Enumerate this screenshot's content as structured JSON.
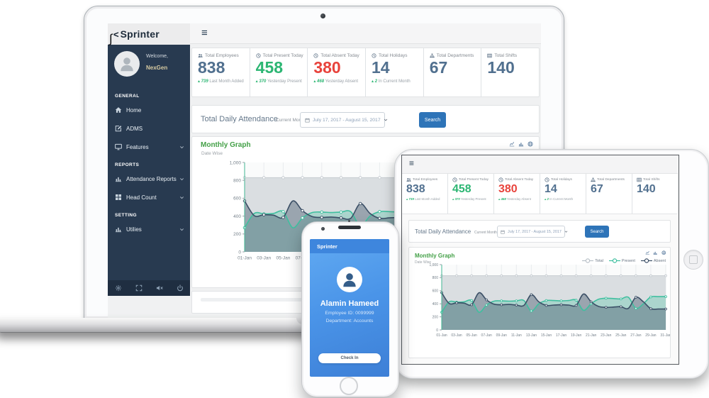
{
  "brand": {
    "name": "Sprinter",
    "logo_glyph": "<",
    "swoosh_glyph": "∫"
  },
  "sidebar": {
    "welcome": "Welcome,",
    "username": "NexGen",
    "sections": [
      {
        "label": "GENERAL",
        "items": [
          {
            "icon": "home",
            "label": "Home",
            "expandable": false
          },
          {
            "icon": "edit",
            "label": "ADMS",
            "expandable": false
          },
          {
            "icon": "desktop",
            "label": "Features",
            "expandable": true
          }
        ]
      },
      {
        "label": "REPORTS",
        "items": [
          {
            "icon": "chart-bar",
            "label": "Attendance Reports",
            "expandable": true
          },
          {
            "icon": "grid",
            "label": "Head Count",
            "expandable": true
          }
        ]
      },
      {
        "label": "SETTING",
        "items": [
          {
            "icon": "chart-bar",
            "label": "Utilies",
            "expandable": true
          }
        ]
      }
    ],
    "footer_icons": [
      "gear",
      "expand",
      "mute",
      "power"
    ]
  },
  "stats": [
    {
      "icon": "users",
      "label": "Total Employees",
      "value": "838",
      "value_color": "#51708f",
      "delta": "739",
      "delta_text": "Last Month Added"
    },
    {
      "icon": "clock",
      "label": "Total Present Today",
      "value": "458",
      "value_color": "#2cb673",
      "delta": "370",
      "delta_text": "Yesterday Present"
    },
    {
      "icon": "clock",
      "label": "Total Absent Today",
      "value": "380",
      "value_color": "#e8433c",
      "delta": "468",
      "delta_text": "Yesterday Absent"
    },
    {
      "icon": "clock",
      "label": "Total Holidays",
      "value": "14",
      "value_color": "#51708f",
      "delta": "2",
      "delta_text": "In Current Month"
    },
    {
      "icon": "sitemap",
      "label": "Total Departments",
      "value": "67",
      "value_color": "#51708f",
      "delta": "",
      "delta_text": ""
    },
    {
      "icon": "table",
      "label": "Total Shifts",
      "value": "140",
      "value_color": "#51708f",
      "delta": "",
      "delta_text": ""
    }
  ],
  "attendance": {
    "title": "Total Daily Attendance",
    "mode_label": "Current Month",
    "date_range": "July 17, 2017 - August 15, 2017",
    "search_label": "Search"
  },
  "graph": {
    "title": "Monthly Graph",
    "subtitle": "Date Wise",
    "toolbar_icons": [
      "chart-line",
      "chart-bar",
      "globe"
    ],
    "legend": [
      {
        "name": "Total",
        "color": "#b9c1c8"
      },
      {
        "name": "Present",
        "color": "#3fbf9f"
      },
      {
        "name": "Absent",
        "color": "#3b4f66"
      }
    ]
  },
  "chart_data": {
    "type": "area",
    "title": "Monthly Graph",
    "xlabel": "",
    "ylabel": "",
    "ylim": [
      0,
      1000
    ],
    "y_ticks": [
      0,
      200,
      400,
      600,
      800,
      1000
    ],
    "y_tick_labels": [
      "0",
      "200",
      "400",
      "600",
      "800",
      "1,000"
    ],
    "x_label_every": 2,
    "x": [
      "01-Jan",
      "02-Jan",
      "03-Jan",
      "04-Jan",
      "05-Jan",
      "06-Jan",
      "07-Jan",
      "08-Jan",
      "09-Jan",
      "10-Jan",
      "11-Jan",
      "12-Jan",
      "13-Jan",
      "14-Jan",
      "15-Jan",
      "16-Jan",
      "17-Jan",
      "18-Jan",
      "19-Jan",
      "20-Jan",
      "21-Jan",
      "22-Jan",
      "23-Jan",
      "24-Jan",
      "25-Jan",
      "26-Jan",
      "27-Jan",
      "28-Jan",
      "29-Jan",
      "30-Jan",
      "31-Jan"
    ],
    "series": [
      {
        "name": "Total",
        "color": "#c6ccd1",
        "fill": "#dadee1",
        "values": [
          830,
          830,
          830,
          830,
          830,
          830,
          830,
          830,
          830,
          830,
          830,
          830,
          830,
          830,
          830,
          830,
          830,
          830,
          830,
          830,
          830,
          830,
          830,
          830,
          830,
          830,
          830,
          830,
          830,
          830,
          830
        ]
      },
      {
        "name": "Present",
        "color": "#3fbf9f",
        "fill": "rgba(63,191,159,0.30)",
        "values": [
          270,
          430,
          425,
          430,
          450,
          270,
          380,
          440,
          445,
          440,
          445,
          450,
          290,
          400,
          450,
          450,
          445,
          450,
          455,
          300,
          400,
          470,
          485,
          480,
          475,
          500,
          330,
          400,
          505,
          510,
          510
        ]
      },
      {
        "name": "Absent",
        "color": "#3b4f66",
        "fill": "rgba(90,108,126,0.50)",
        "values": [
          570,
          405,
          415,
          410,
          385,
          570,
          460,
          395,
          385,
          390,
          380,
          375,
          540,
          430,
          375,
          380,
          385,
          380,
          375,
          550,
          430,
          360,
          345,
          350,
          355,
          330,
          500,
          430,
          325,
          320,
          320
        ]
      }
    ]
  },
  "phone": {
    "title": "Sprinter",
    "name": "Alamin Hameed",
    "employee_id": "Employee ID: 0099999",
    "department": "Department: Accounts",
    "check_in": "Check In"
  }
}
